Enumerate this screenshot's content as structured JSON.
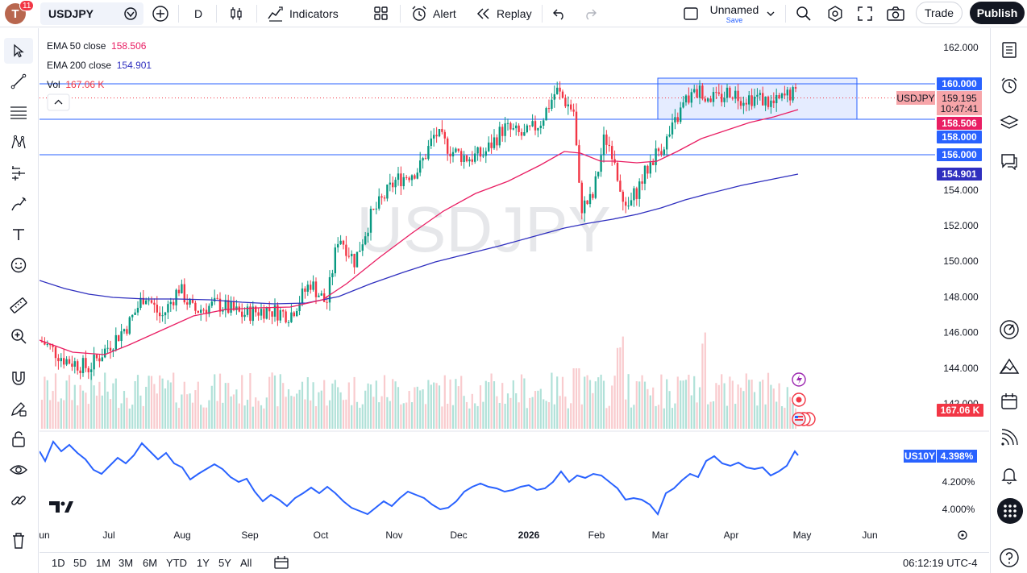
{
  "topbar": {
    "avatar_letter": "T",
    "notifications": "11",
    "symbol": "USDJPY",
    "interval": "D",
    "indicators_label": "Indicators",
    "alert_label": "Alert",
    "replay_label": "Replay",
    "layout_name": "Unnamed",
    "save_label": "Save",
    "trade_label": "Trade",
    "publish_label": "Publish"
  },
  "legend": {
    "ema50_label": "EMA 50 close",
    "ema50_value": "158.506",
    "ema200_label": "EMA 200 close",
    "ema200_value": "154.901",
    "vol_label": "Vol",
    "vol_value": "167.06 K"
  },
  "watermark": "USDJPY",
  "price_axis": {
    "ticks": [
      "162.000",
      "160.000",
      "159.195",
      "158.000",
      "156.000",
      "154.000",
      "152.000",
      "150.000",
      "148.000",
      "146.000",
      "144.000",
      "142.000"
    ],
    "labels": {
      "level_160": "160.000",
      "current": "159.195",
      "countdown": "10:47:41",
      "symbol_tag": "USDJPY",
      "ema50": "158.506",
      "level_158": "158.000",
      "level_156": "156.000",
      "ema200": "154.901",
      "volume": "167.06 K"
    },
    "plain_ticks": [
      "162.000",
      "154.000",
      "152.000",
      "150.000",
      "148.000",
      "146.000",
      "144.000",
      "142.000"
    ]
  },
  "sub_pane": {
    "symbol": "US10Y",
    "value": "4.398%",
    "ticks": [
      "4.200%",
      "4.000%"
    ]
  },
  "time_axis": [
    "Jun",
    "Jul",
    "Aug",
    "Sep",
    "Oct",
    "Nov",
    "Dec",
    "2026",
    "Feb",
    "Mar",
    "Apr",
    "May",
    "Jun"
  ],
  "bottom": {
    "ranges": [
      "1D",
      "5D",
      "1M",
      "3M",
      "6M",
      "YTD",
      "1Y",
      "5Y",
      "All"
    ],
    "clock": "06:12:19 UTC-4"
  },
  "colors": {
    "up": "#089981",
    "down": "#f23645",
    "ema50": "#e91e63",
    "ema200": "#2f2fbf",
    "hline": "#2962ff",
    "us10y": "#2962ff"
  },
  "icons": {
    "left": [
      "cursor-icon",
      "trend-line-icon",
      "fib-icon",
      "pattern-icon",
      "forecast-icon",
      "brush-icon",
      "text-icon",
      "emoji-icon",
      "ruler-icon",
      "zoom-icon",
      "magnet-icon",
      "lock-drawing-icon",
      "lock-icon",
      "eye-icon",
      "link-icon",
      "trash-icon"
    ],
    "right": [
      "watchlist-icon",
      "alerts-icon",
      "layers-icon",
      "chat-icon",
      "target-icon",
      "ideas-icon",
      "calendar-icon",
      "broadcast-icon",
      "bell-icon",
      "apps-icon",
      "help-icon"
    ]
  }
}
